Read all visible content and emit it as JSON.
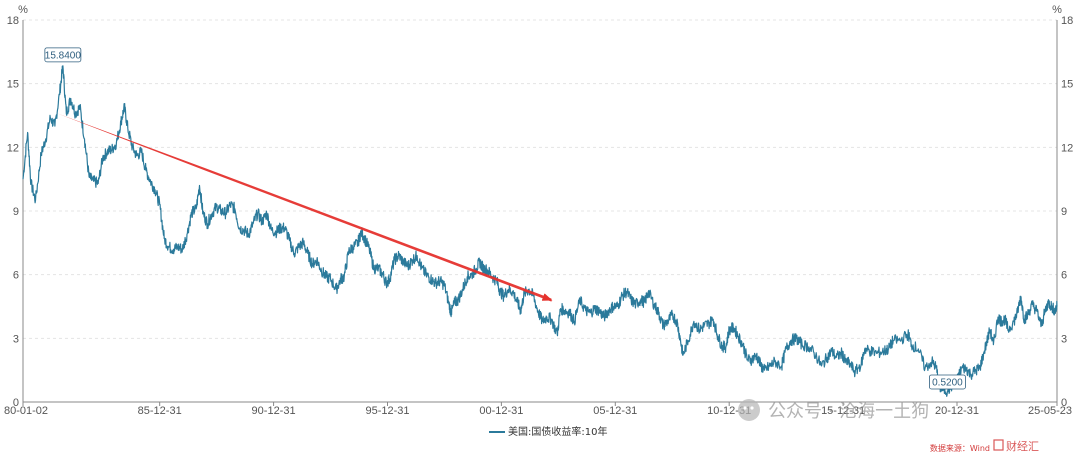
{
  "chart_data": {
    "type": "line",
    "y_unit_left": "%",
    "y_unit_right": "%",
    "ylim": [
      0,
      18
    ],
    "yticks": [
      0,
      3,
      6,
      9,
      12,
      15,
      18
    ],
    "x_tick_labels": [
      "80-01-02",
      "85-12-31",
      "90-12-31",
      "95-12-31",
      "00-12-31",
      "05-12-31",
      "10-12-31",
      "15-12-31",
      "20-12-31",
      "25-05-23"
    ],
    "x_tick_years": [
      1980.0,
      1986.0,
      1991.0,
      1996.0,
      2001.0,
      2006.0,
      2011.0,
      2016.0,
      2021.0,
      2025.39
    ],
    "xlim": [
      1980.0,
      2025.39
    ],
    "grid": "horizontal-dashed",
    "legend_position": "bottom-center",
    "series": [
      {
        "name": "美国:国债收益率:10年",
        "color": "#2b7a9b",
        "points": [
          [
            1980.0,
            10.5
          ],
          [
            1980.2,
            12.7
          ],
          [
            1980.35,
            10.3
          ],
          [
            1980.55,
            9.5
          ],
          [
            1980.8,
            11.7
          ],
          [
            1981.0,
            12.4
          ],
          [
            1981.2,
            13.4
          ],
          [
            1981.4,
            13.0
          ],
          [
            1981.6,
            14.5
          ],
          [
            1981.75,
            15.84
          ],
          [
            1981.9,
            13.6
          ],
          [
            1982.1,
            14.3
          ],
          [
            1982.3,
            13.6
          ],
          [
            1982.5,
            13.9
          ],
          [
            1982.7,
            12.4
          ],
          [
            1982.9,
            10.6
          ],
          [
            1983.1,
            10.4
          ],
          [
            1983.3,
            10.3
          ],
          [
            1983.5,
            11.5
          ],
          [
            1983.7,
            11.8
          ],
          [
            1983.9,
            11.9
          ],
          [
            1984.1,
            12.2
          ],
          [
            1984.3,
            13.2
          ],
          [
            1984.45,
            13.9
          ],
          [
            1984.6,
            12.9
          ],
          [
            1984.8,
            12.0
          ],
          [
            1985.0,
            11.6
          ],
          [
            1985.2,
            11.8
          ],
          [
            1985.4,
            10.9
          ],
          [
            1985.6,
            10.4
          ],
          [
            1985.8,
            10.0
          ],
          [
            1986.0,
            9.3
          ],
          [
            1986.2,
            7.7
          ],
          [
            1986.4,
            7.3
          ],
          [
            1986.6,
            7.2
          ],
          [
            1986.8,
            7.3
          ],
          [
            1987.0,
            7.2
          ],
          [
            1987.2,
            7.9
          ],
          [
            1987.4,
            8.9
          ],
          [
            1987.6,
            9.1
          ],
          [
            1987.75,
            10.2
          ],
          [
            1987.9,
            8.9
          ],
          [
            1988.1,
            8.4
          ],
          [
            1988.3,
            8.9
          ],
          [
            1988.5,
            9.2
          ],
          [
            1988.7,
            9.0
          ],
          [
            1988.9,
            8.9
          ],
          [
            1989.1,
            9.3
          ],
          [
            1989.3,
            9.1
          ],
          [
            1989.5,
            8.2
          ],
          [
            1989.7,
            8.1
          ],
          [
            1989.9,
            7.9
          ],
          [
            1990.1,
            8.4
          ],
          [
            1990.3,
            8.9
          ],
          [
            1990.5,
            8.5
          ],
          [
            1990.7,
            8.9
          ],
          [
            1990.9,
            8.1
          ],
          [
            1991.1,
            8.0
          ],
          [
            1991.3,
            8.2
          ],
          [
            1991.5,
            8.2
          ],
          [
            1991.7,
            7.6
          ],
          [
            1991.9,
            7.0
          ],
          [
            1992.1,
            7.3
          ],
          [
            1992.3,
            7.5
          ],
          [
            1992.5,
            7.0
          ],
          [
            1992.7,
            6.5
          ],
          [
            1992.9,
            6.7
          ],
          [
            1993.1,
            6.2
          ],
          [
            1993.3,
            5.9
          ],
          [
            1993.5,
            5.8
          ],
          [
            1993.75,
            5.3
          ],
          [
            1993.95,
            5.8
          ],
          [
            1994.1,
            5.9
          ],
          [
            1994.3,
            7.1
          ],
          [
            1994.5,
            7.3
          ],
          [
            1994.7,
            7.5
          ],
          [
            1994.85,
            8.0
          ],
          [
            1995.0,
            7.7
          ],
          [
            1995.2,
            7.2
          ],
          [
            1995.4,
            6.3
          ],
          [
            1995.6,
            6.3
          ],
          [
            1995.8,
            6.0
          ],
          [
            1995.95,
            5.6
          ],
          [
            1996.1,
            5.8
          ],
          [
            1996.3,
            6.7
          ],
          [
            1996.5,
            6.9
          ],
          [
            1996.7,
            6.6
          ],
          [
            1996.9,
            6.4
          ],
          [
            1997.1,
            6.7
          ],
          [
            1997.3,
            6.9
          ],
          [
            1997.5,
            6.3
          ],
          [
            1997.7,
            6.0
          ],
          [
            1997.9,
            5.8
          ],
          [
            1998.1,
            5.6
          ],
          [
            1998.3,
            5.7
          ],
          [
            1998.5,
            5.5
          ],
          [
            1998.7,
            4.6
          ],
          [
            1998.8,
            4.2
          ],
          [
            1998.95,
            4.7
          ],
          [
            1999.1,
            4.8
          ],
          [
            1999.3,
            5.3
          ],
          [
            1999.5,
            5.9
          ],
          [
            1999.7,
            6.0
          ],
          [
            1999.9,
            6.3
          ],
          [
            2000.05,
            6.6
          ],
          [
            2000.2,
            6.3
          ],
          [
            2000.4,
            6.2
          ],
          [
            2000.6,
            5.9
          ],
          [
            2000.8,
            5.7
          ],
          [
            2000.95,
            5.2
          ],
          [
            2001.1,
            5.0
          ],
          [
            2001.3,
            5.3
          ],
          [
            2001.5,
            5.2
          ],
          [
            2001.7,
            4.7
          ],
          [
            2001.85,
            4.3
          ],
          [
            2002.0,
            5.1
          ],
          [
            2002.2,
            5.3
          ],
          [
            2002.4,
            5.0
          ],
          [
            2002.6,
            4.3
          ],
          [
            2002.8,
            3.8
          ],
          [
            2003.0,
            4.0
          ],
          [
            2003.2,
            3.9
          ],
          [
            2003.45,
            3.2
          ],
          [
            2003.6,
            4.4
          ],
          [
            2003.8,
            4.3
          ],
          [
            2004.0,
            4.2
          ],
          [
            2004.2,
            3.8
          ],
          [
            2004.45,
            4.8
          ],
          [
            2004.7,
            4.3
          ],
          [
            2004.9,
            4.2
          ],
          [
            2005.1,
            4.4
          ],
          [
            2005.3,
            4.3
          ],
          [
            2005.5,
            4.0
          ],
          [
            2005.7,
            4.3
          ],
          [
            2005.9,
            4.5
          ],
          [
            2006.1,
            4.5
          ],
          [
            2006.3,
            5.0
          ],
          [
            2006.5,
            5.2
          ],
          [
            2006.7,
            4.8
          ],
          [
            2006.9,
            4.6
          ],
          [
            2007.1,
            4.8
          ],
          [
            2007.3,
            4.7
          ],
          [
            2007.45,
            5.2
          ],
          [
            2007.7,
            4.6
          ],
          [
            2007.9,
            4.2
          ],
          [
            2008.1,
            3.6
          ],
          [
            2008.3,
            3.8
          ],
          [
            2008.5,
            4.1
          ],
          [
            2008.7,
            3.8
          ],
          [
            2008.85,
            3.0
          ],
          [
            2008.97,
            2.2
          ],
          [
            2009.2,
            2.9
          ],
          [
            2009.45,
            3.8
          ],
          [
            2009.7,
            3.4
          ],
          [
            2009.9,
            3.6
          ],
          [
            2010.1,
            3.7
          ],
          [
            2010.3,
            3.9
          ],
          [
            2010.5,
            3.1
          ],
          [
            2010.7,
            2.6
          ],
          [
            2010.85,
            2.6
          ],
          [
            2011.0,
            3.4
          ],
          [
            2011.2,
            3.5
          ],
          [
            2011.4,
            3.1
          ],
          [
            2011.6,
            2.7
          ],
          [
            2011.8,
            2.0
          ],
          [
            2012.0,
            2.0
          ],
          [
            2012.2,
            2.2
          ],
          [
            2012.4,
            1.7
          ],
          [
            2012.55,
            1.5
          ],
          [
            2012.8,
            1.7
          ],
          [
            2013.0,
            1.9
          ],
          [
            2013.3,
            1.7
          ],
          [
            2013.5,
            2.5
          ],
          [
            2013.7,
            2.9
          ],
          [
            2013.95,
            3.0
          ],
          [
            2014.2,
            2.7
          ],
          [
            2014.5,
            2.6
          ],
          [
            2014.8,
            2.2
          ],
          [
            2015.05,
            1.7
          ],
          [
            2015.3,
            2.1
          ],
          [
            2015.5,
            2.4
          ],
          [
            2015.7,
            2.1
          ],
          [
            2015.95,
            2.3
          ],
          [
            2016.1,
            1.9
          ],
          [
            2016.3,
            1.8
          ],
          [
            2016.53,
            1.4
          ],
          [
            2016.8,
            1.8
          ],
          [
            2016.95,
            2.5
          ],
          [
            2017.2,
            2.4
          ],
          [
            2017.5,
            2.3
          ],
          [
            2017.8,
            2.4
          ],
          [
            2018.0,
            2.5
          ],
          [
            2018.2,
            2.9
          ],
          [
            2018.5,
            2.9
          ],
          [
            2018.85,
            3.2
          ],
          [
            2019.0,
            2.7
          ],
          [
            2019.3,
            2.5
          ],
          [
            2019.6,
            1.6
          ],
          [
            2019.9,
            1.9
          ],
          [
            2020.1,
            1.6
          ],
          [
            2020.22,
            0.7
          ],
          [
            2020.4,
            0.6
          ],
          [
            2020.58,
            0.52
          ],
          [
            2020.8,
            0.8
          ],
          [
            2021.0,
            1.0
          ],
          [
            2021.2,
            1.6
          ],
          [
            2021.4,
            1.6
          ],
          [
            2021.6,
            1.3
          ],
          [
            2021.85,
            1.5
          ],
          [
            2022.0,
            1.6
          ],
          [
            2022.2,
            2.4
          ],
          [
            2022.45,
            3.4
          ],
          [
            2022.6,
            2.7
          ],
          [
            2022.8,
            4.0
          ],
          [
            2022.95,
            3.8
          ],
          [
            2023.1,
            3.9
          ],
          [
            2023.25,
            3.4
          ],
          [
            2023.5,
            3.8
          ],
          [
            2023.65,
            4.2
          ],
          [
            2023.8,
            4.98
          ],
          [
            2023.95,
            3.9
          ],
          [
            2024.1,
            4.1
          ],
          [
            2024.3,
            4.6
          ],
          [
            2024.5,
            4.3
          ],
          [
            2024.7,
            3.6
          ],
          [
            2024.85,
            4.2
          ],
          [
            2025.0,
            4.7
          ],
          [
            2025.15,
            4.5
          ],
          [
            2025.3,
            4.3
          ],
          [
            2025.39,
            4.5
          ]
        ]
      }
    ],
    "annotations": [
      {
        "label": "15.8400",
        "x": 1981.75,
        "y": 15.84
      },
      {
        "label": "0.5200",
        "x": 2020.58,
        "y": 0.52
      }
    ],
    "trend_arrow": {
      "color": "#e5322d",
      "from": [
        1981.5,
        13.6
      ],
      "to": [
        2003.2,
        4.8
      ]
    }
  },
  "watermark": "公众号 · 沧海一土狗",
  "source_text": "数据来源：Wind",
  "brand_text": "财经汇"
}
